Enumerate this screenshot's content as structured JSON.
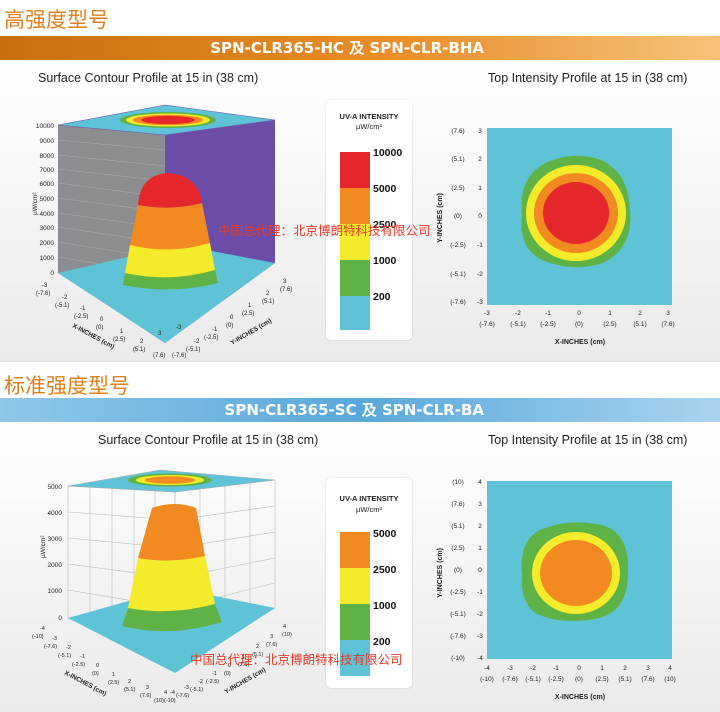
{
  "sections": [
    {
      "heading": "高强度型号",
      "banner": "SPN-CLR365-HC 及 SPN-CLR-BHA",
      "surface_caption": "Surface Contour Profile at 15 in (38 cm)",
      "top_caption": "Top Intensity Profile at 15 in (38 cm)",
      "legend": {
        "title": "UV-A INTENSITY",
        "unit": "µW/cm²",
        "levels": [
          {
            "label": "10000",
            "color": "#e5262b"
          },
          {
            "label": "5000",
            "color": "#f28a21"
          },
          {
            "label": "2500",
            "color": "#f4ec2a"
          },
          {
            "label": "1000",
            "color": "#5fb346"
          },
          {
            "label": "200",
            "color": "#5ec3d6"
          }
        ]
      },
      "surface_z_ticks": [
        "10000",
        "9000",
        "8000",
        "7000",
        "6000",
        "5000",
        "4000",
        "3000",
        "2000",
        "1000",
        "0"
      ],
      "surface_z_label": "µW/cm²",
      "surface_x_ticks": [
        "-3",
        "(-7.6)",
        "-2",
        "(-5.1)",
        "-1",
        "(-2.5)",
        "0",
        "(0)",
        "1",
        "(2.5)",
        "2",
        "(5.1)",
        "3",
        "(7.6)"
      ],
      "surface_y_ticks": [
        "3",
        "(7.6)",
        "2",
        "(5.1)",
        "1",
        "(2.5)",
        "0",
        "(0)",
        "-1",
        "(-2.5)",
        "-2",
        "(-5.1)",
        "-3",
        "(-7.6)"
      ],
      "surface_x_label": "X-INCHES (cm)",
      "surface_y_label": "Y-INCHES (cm)",
      "top_y_ticks": [
        [
          "(7.6)",
          "3"
        ],
        [
          "(5.1)",
          "2"
        ],
        [
          "(2.5)",
          "1"
        ],
        [
          "(0)",
          "0"
        ],
        [
          "(-2.5)",
          "-1"
        ],
        [
          "(-5.1)",
          "-2"
        ],
        [
          "(-7.6)",
          "-3"
        ]
      ],
      "top_x_ticks": [
        [
          "-3",
          "(-7.6)"
        ],
        [
          "-2",
          "(-5.1)"
        ],
        [
          "-1",
          "(-2.5)"
        ],
        [
          "0",
          "(0)"
        ],
        [
          "1",
          "(2.5)"
        ],
        [
          "2",
          "(5.1)"
        ],
        [
          "3",
          "(7.6)"
        ]
      ],
      "top_x_label": "X-INCHES (cm)",
      "top_y_label": "Y-INCHES (cm)",
      "watermark": "中国总代理：北京博朗特科技有限公司"
    },
    {
      "heading": "标准强度型号",
      "banner": "SPN-CLR365-SC 及 SPN-CLR-BA",
      "surface_caption": "Surface Contour Profile at 15 in (38 cm)",
      "top_caption": "Top Intensity Profile at 15 in (38 cm)",
      "legend": {
        "title": "UV-A INTENSITY",
        "unit": "µW/cm²",
        "levels": [
          {
            "label": "5000",
            "color": "#f28a21"
          },
          {
            "label": "2500",
            "color": "#f4ec2a"
          },
          {
            "label": "1000",
            "color": "#5fb346"
          },
          {
            "label": "200",
            "color": "#5ec3d6"
          }
        ]
      },
      "surface_z_ticks": [
        "5000",
        "4000",
        "3000",
        "2000",
        "1000",
        "0"
      ],
      "surface_z_label": "µW/cm²",
      "surface_x_ticks": [
        "-4",
        "(-10)",
        "-3",
        "(-7.6)",
        "-2",
        "(-5.1)",
        "-1",
        "(-2.5)",
        "0",
        "(0)",
        "1",
        "(2.5)",
        "2",
        "(5.1)",
        "3",
        "(7.6)",
        "4",
        "(10)"
      ],
      "surface_y_ticks": [
        "4",
        "(10)",
        "3",
        "(7.6)",
        "2",
        "(5.1)",
        "1",
        "(2.5)",
        "0",
        "(0)",
        "-1",
        "(-2.5)",
        "-2",
        "(-5.1)",
        "-3",
        "(-7.6)",
        "-4",
        "(-10)"
      ],
      "surface_x_label": "X-INCHES (cm)",
      "surface_y_label": "Y-INCHES (cm)",
      "top_y_ticks": [
        [
          "(10)",
          "4"
        ],
        [
          "(7.6)",
          "3"
        ],
        [
          "(5.1)",
          "2"
        ],
        [
          "(2.5)",
          "1"
        ],
        [
          "(0)",
          "0"
        ],
        [
          "(-2.5)",
          "-1"
        ],
        [
          "(-5.1)",
          "-2"
        ],
        [
          "(-7.6)",
          "-3"
        ],
        [
          "(-10)",
          "-4"
        ]
      ],
      "top_x_ticks": [
        [
          "-4",
          "(-10)"
        ],
        [
          "-3",
          "(-7.6)"
        ],
        [
          "-2",
          "(-5.1)"
        ],
        [
          "-1",
          "(-2.5)"
        ],
        [
          "0",
          "(0)"
        ],
        [
          "1",
          "(2.5)"
        ],
        [
          "2",
          "(5.1)"
        ],
        [
          "3",
          "(7.6)"
        ],
        [
          "4",
          "(10)"
        ]
      ],
      "top_x_label": "X-INCHES (cm)",
      "top_y_label": "Y-INCHES (cm)",
      "watermark": "中国总代理：北京博朗特科技有限公司"
    }
  ]
}
